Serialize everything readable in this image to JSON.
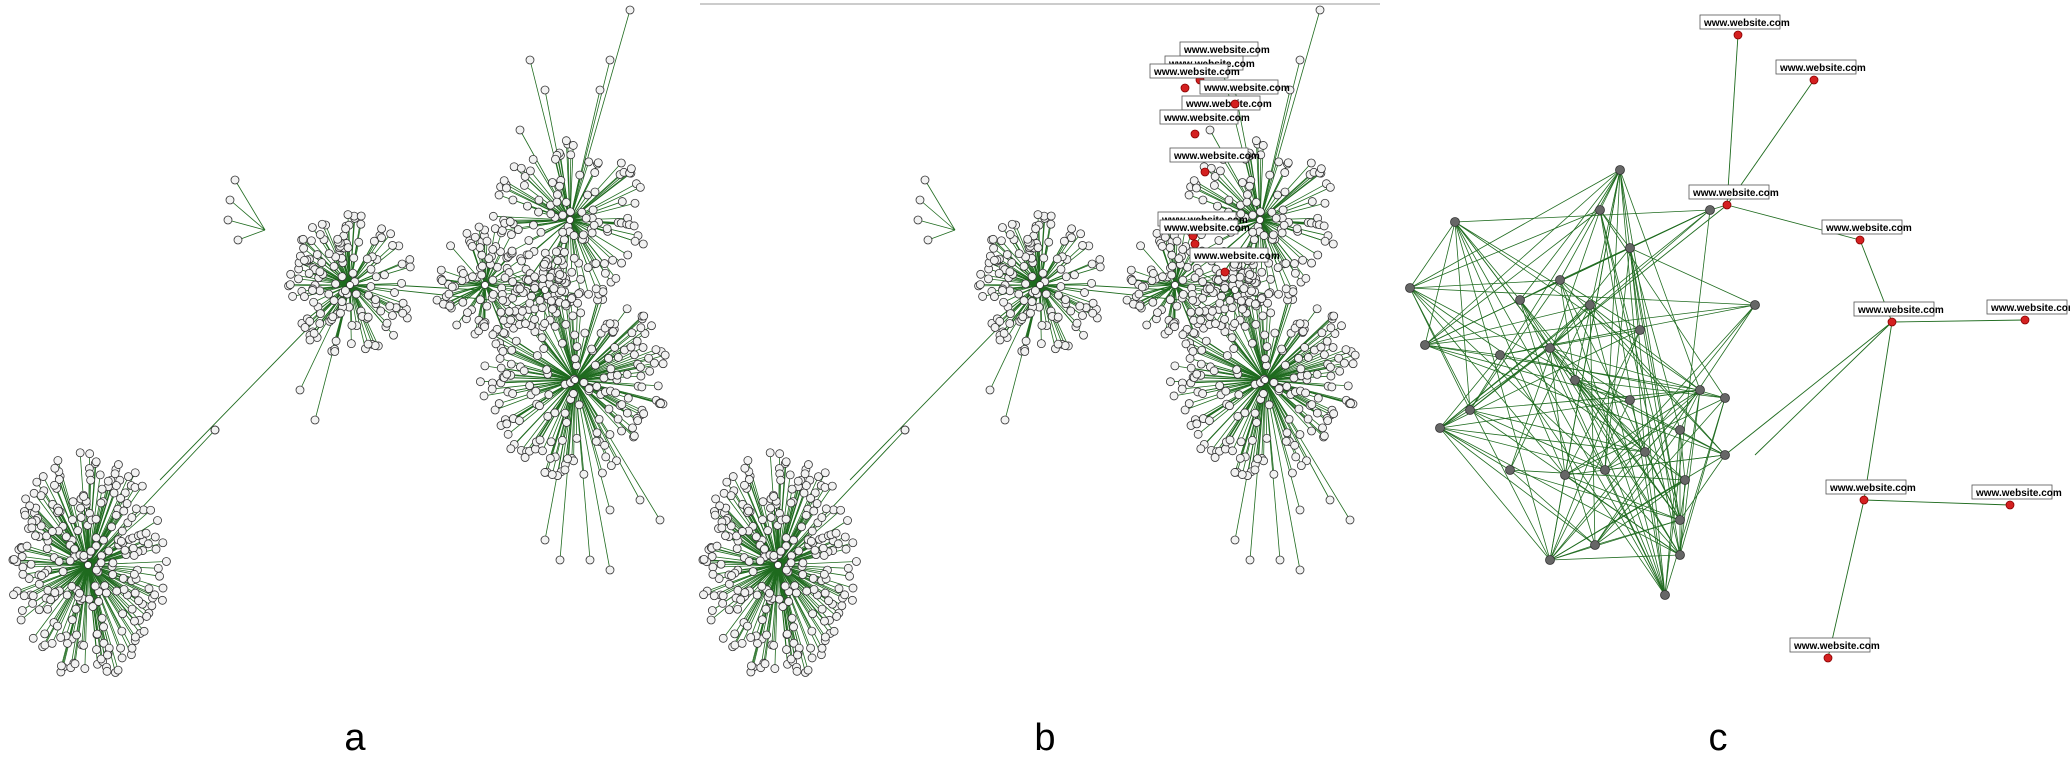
{
  "panels": [
    {
      "id": "a",
      "label": "a"
    },
    {
      "id": "b",
      "label": "b",
      "node_tags": [
        "www.website.com",
        "www.website.com",
        "www.website.com",
        "www.website.com",
        "www.website.com",
        "www.website.com",
        "www.website.com",
        "www.website.com",
        "www.website.com",
        "www.website.com"
      ]
    },
    {
      "id": "c",
      "label": "c",
      "node_tags": [
        "www.website.com",
        "www.website.com",
        "www.website.com",
        "www.website.com",
        "www.website.com",
        "www.website.com",
        "www.website.com",
        "www.website.com",
        "www.website.com"
      ]
    }
  ],
  "colors": {
    "edge": "#1f6b1f",
    "node_fill": "#f2f2f2",
    "node_stroke": "#333333",
    "hub_node": "#666666",
    "highlight_node": "#d42020",
    "tag_border": "#555555"
  }
}
